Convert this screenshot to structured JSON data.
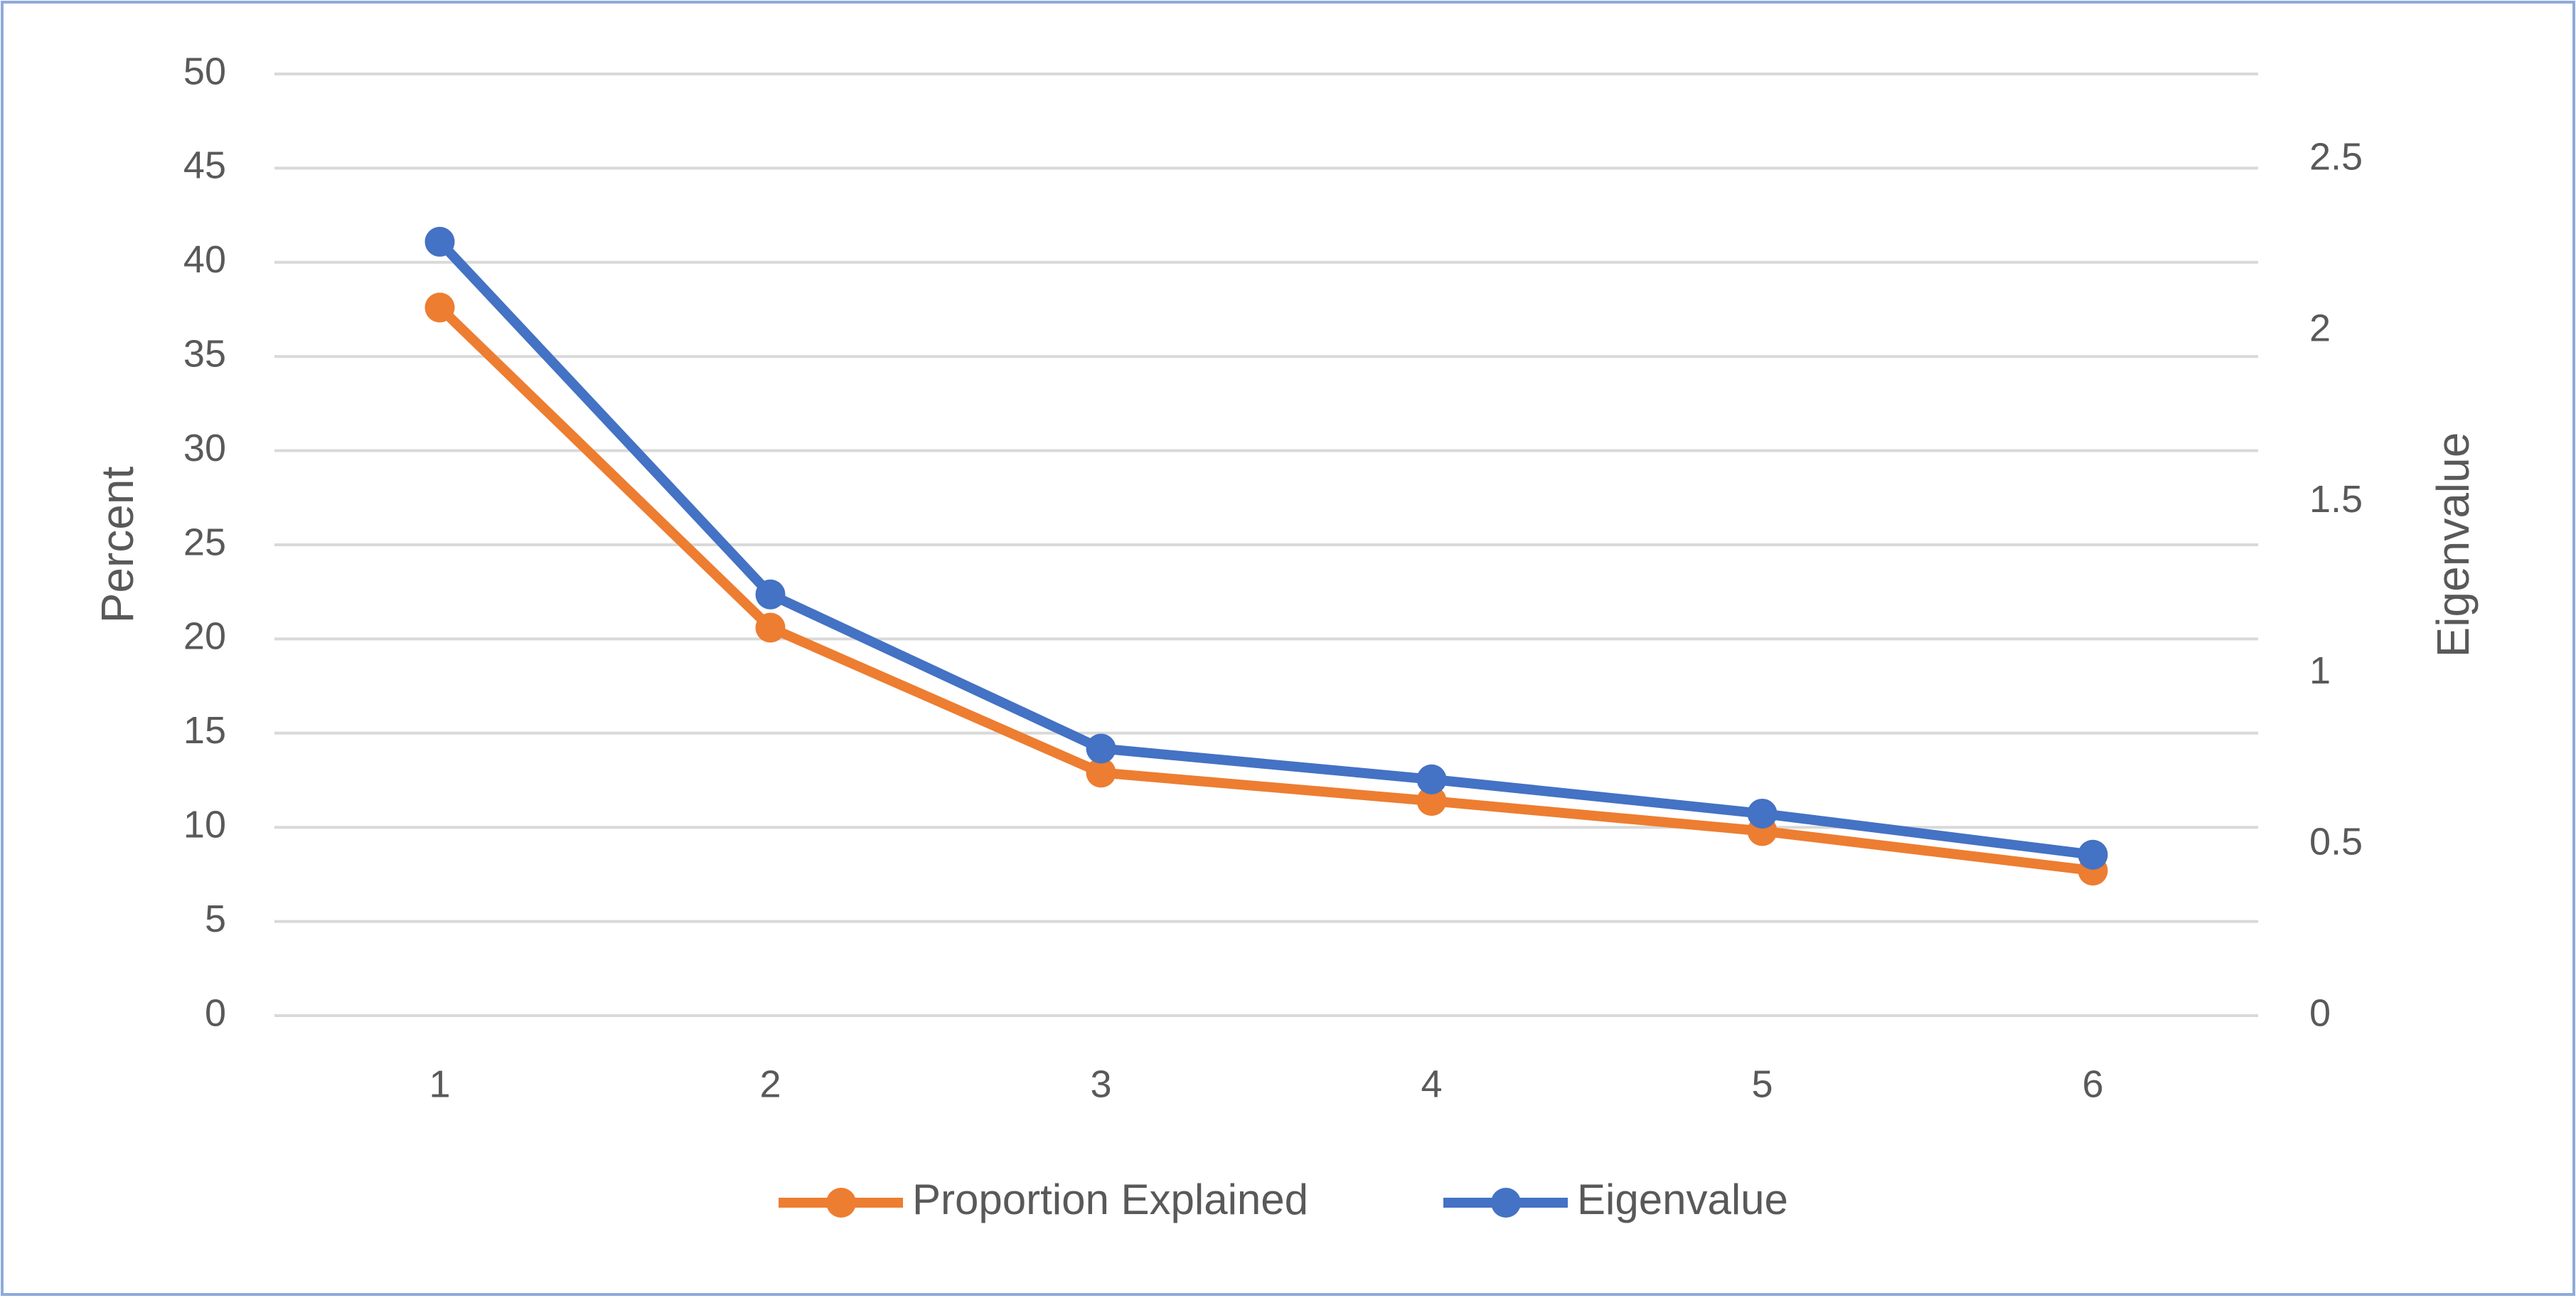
{
  "chart_data": {
    "type": "line",
    "categories": [
      "1",
      "2",
      "3",
      "4",
      "5",
      "6"
    ],
    "y_label": "Percent",
    "y2_label": "Eigenvalue",
    "ylim": [
      0,
      50
    ],
    "yticks": [
      0,
      5,
      10,
      15,
      20,
      25,
      30,
      35,
      40,
      45,
      50
    ],
    "y2lim": [
      0,
      2.75
    ],
    "y2ticks": [
      0,
      0.5,
      1,
      1.5,
      2,
      2.5
    ],
    "grid": true,
    "legend": "bottom",
    "series": [
      {
        "name": "Proportion Explained",
        "color": "#ed7d31",
        "values": [
          37.6,
          20.6,
          12.9,
          11.4,
          9.8,
          7.7
        ]
      },
      {
        "name": "Eigenvalue",
        "color": "#4472c4",
        "axis": "y2",
        "values": [
          2.26,
          1.23,
          0.78,
          0.69,
          0.59,
          0.47
        ]
      }
    ]
  }
}
